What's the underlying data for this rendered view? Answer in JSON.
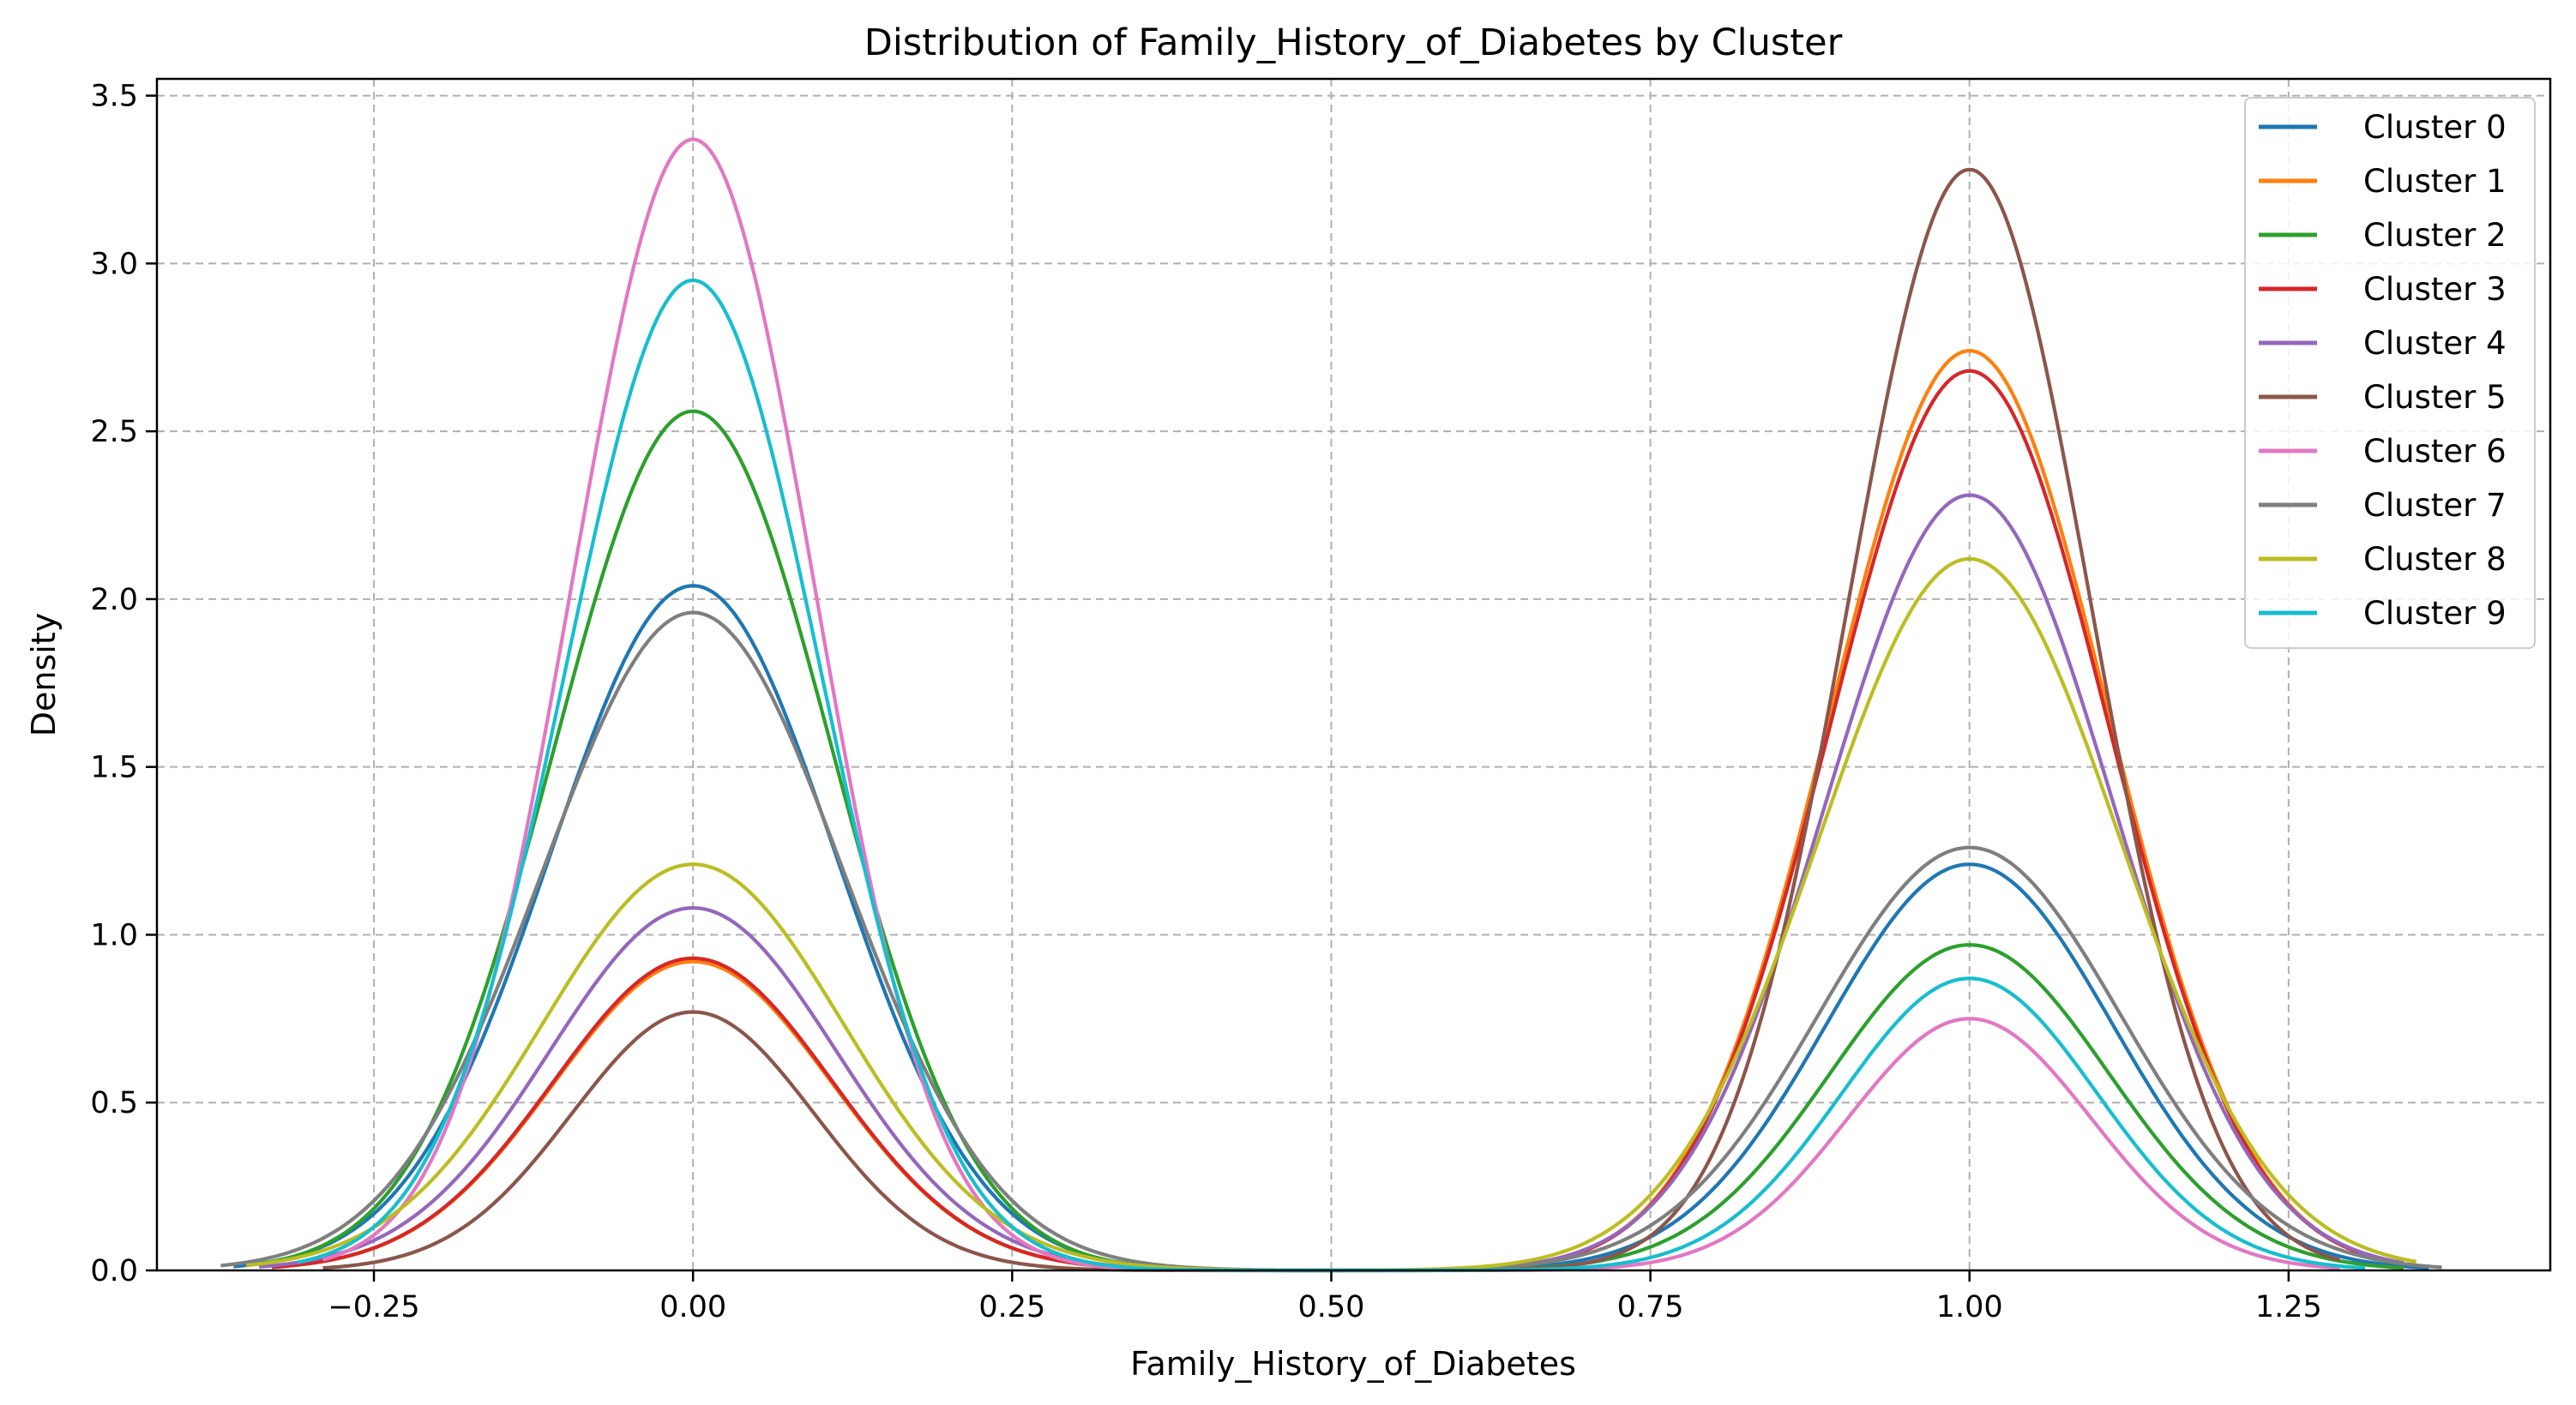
{
  "chart_data": {
    "type": "line",
    "title": "Distribution of Family_History_of_Diabetes by Cluster",
    "xlabel": "Family_History_of_Diabetes",
    "ylabel": "Density",
    "xlim": [
      -0.42,
      1.455
    ],
    "ylim": [
      0,
      3.55
    ],
    "xticks": [
      -0.25,
      0.0,
      0.25,
      0.5,
      0.75,
      1.0,
      1.25
    ],
    "xtick_labels": [
      "−0.25",
      "0.00",
      "0.25",
      "0.50",
      "0.75",
      "1.00",
      "1.25"
    ],
    "yticks": [
      0.0,
      0.5,
      1.0,
      1.5,
      2.0,
      2.5,
      3.0,
      3.5
    ],
    "ytick_labels": [
      "0.0",
      "0.5",
      "1.0",
      "1.5",
      "2.0",
      "2.5",
      "3.0",
      "3.5"
    ],
    "grid": true,
    "legend_position": "top-right",
    "series": [
      {
        "name": "Cluster 0",
        "color": "#1f77b4",
        "peak_at_0": 2.04,
        "peak_at_1": 1.21,
        "bandwidth": 0.112,
        "x_range": [
          -0.36,
          1.36
        ]
      },
      {
        "name": "Cluster 1",
        "color": "#ff7f0e",
        "peak_at_0": 0.92,
        "peak_at_1": 2.74,
        "bandwidth": 0.109,
        "x_range": [
          -0.33,
          1.33
        ]
      },
      {
        "name": "Cluster 2",
        "color": "#2ca02c",
        "peak_at_0": 2.56,
        "peak_at_1": 0.97,
        "bandwidth": 0.109,
        "x_range": [
          -0.34,
          1.34
        ]
      },
      {
        "name": "Cluster 3",
        "color": "#d62728",
        "peak_at_0": 0.93,
        "peak_at_1": 2.68,
        "bandwidth": 0.109,
        "x_range": [
          -0.33,
          1.33
        ]
      },
      {
        "name": "Cluster 4",
        "color": "#9467bd",
        "peak_at_0": 1.08,
        "peak_at_1": 2.31,
        "bandwidth": 0.112,
        "x_range": [
          -0.34,
          1.34
        ]
      },
      {
        "name": "Cluster 5",
        "color": "#8c564b",
        "peak_at_0": 0.77,
        "peak_at_1": 3.28,
        "bandwidth": 0.095,
        "x_range": [
          -0.29,
          1.29
        ]
      },
      {
        "name": "Cluster 6",
        "color": "#e377c2",
        "peak_at_0": 3.37,
        "peak_at_1": 0.75,
        "bandwidth": 0.095,
        "x_range": [
          -0.29,
          1.29
        ]
      },
      {
        "name": "Cluster 7",
        "color": "#7f7f7f",
        "peak_at_0": 1.96,
        "peak_at_1": 1.26,
        "bandwidth": 0.118,
        "x_range": [
          -0.37,
          1.37
        ]
      },
      {
        "name": "Cluster 8",
        "color": "#bcbd22",
        "peak_at_0": 1.21,
        "peak_at_1": 2.12,
        "bandwidth": 0.118,
        "x_range": [
          -0.35,
          1.35
        ]
      },
      {
        "name": "Cluster 9",
        "color": "#17becf",
        "peak_at_0": 2.95,
        "peak_at_1": 0.87,
        "bandwidth": 0.1,
        "x_range": [
          -0.31,
          1.31
        ]
      }
    ]
  }
}
